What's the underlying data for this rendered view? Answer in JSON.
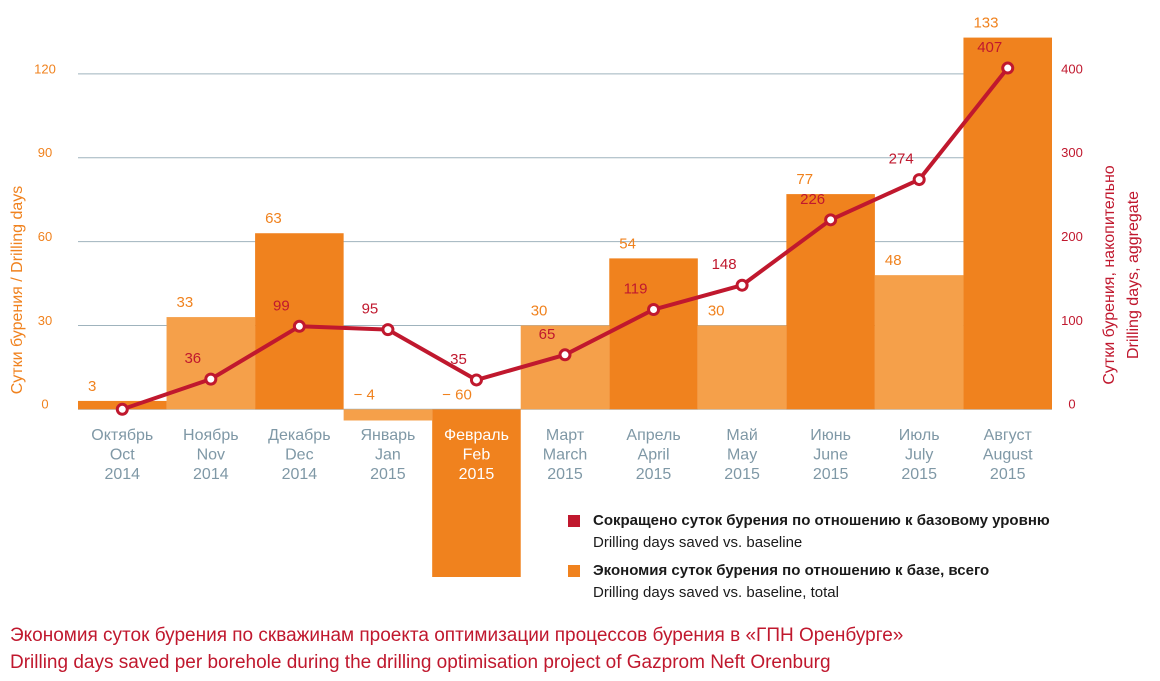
{
  "chart_data": {
    "type": "bar-line",
    "title": "Экономия суток бурения по скважинам проекта оптимизации процессов бурения в «ГПН Оренбурге»",
    "subtitle": "Drilling days saved per borehole during the drilling optimisation project of Gazprom Neft Orenburg",
    "y_label": "Сутки бурения / Drilling days",
    "y2_label": [
      "Сутки бурения, накопительно",
      "Drilling days, aggregate"
    ],
    "categories": [
      [
        "Октябрь",
        "Oct",
        "2014"
      ],
      [
        "Ноябрь",
        "Nov",
        "2014"
      ],
      [
        "Декабрь",
        "Dec",
        "2014"
      ],
      [
        "Январь",
        "Jan",
        "2015"
      ],
      [
        "Февраль",
        "Feb",
        "2015"
      ],
      [
        "Март",
        "March",
        "2015"
      ],
      [
        "Апрель",
        "April",
        "2015"
      ],
      [
        "Май",
        "May",
        "2015"
      ],
      [
        "Июнь",
        "June",
        "2015"
      ],
      [
        "Июль",
        "July",
        "2015"
      ],
      [
        "Август",
        "August",
        "2015"
      ]
    ],
    "series": [
      {
        "name": [
          "Экономия суток бурения по отношению к базе, всего",
          "Drilling days saved vs. baseline, total"
        ],
        "type": "bar",
        "color": "#f0821e",
        "colors": [
          "#f0821e",
          "#f5a04a",
          "#f0821e",
          "#f5a04a",
          "#f0821e",
          "#f5a04a",
          "#f0821e",
          "#f5a04a",
          "#f0821e",
          "#f5a04a",
          "#f0821e"
        ],
        "values": [
          3,
          33,
          63,
          -4,
          -60,
          30,
          54,
          30,
          77,
          48,
          133
        ],
        "value_labels": [
          "3",
          "33",
          "63",
          "− 4",
          "− 60",
          "30",
          "54",
          "30",
          "77",
          "48",
          "133"
        ]
      },
      {
        "name": [
          "Сокращено суток бурения по отношению к базовому уровню",
          "Drilling days saved vs. baseline"
        ],
        "type": "line",
        "axis": "y2",
        "color": "#c0182e",
        "values": [
          0,
          36,
          99,
          95,
          35,
          65,
          119,
          148,
          226,
          274,
          407
        ],
        "value_labels": [
          null,
          "36",
          "99",
          "95",
          "35",
          "65",
          "119",
          "148",
          "226",
          "274",
          "407"
        ]
      }
    ],
    "ylim": [
      -60,
      135
    ],
    "yticks": [
      0,
      30,
      60,
      90,
      120
    ],
    "y2lim": [
      -200,
      450
    ],
    "y2ticks": [
      0,
      100,
      200,
      300,
      400
    ],
    "grid": true
  }
}
